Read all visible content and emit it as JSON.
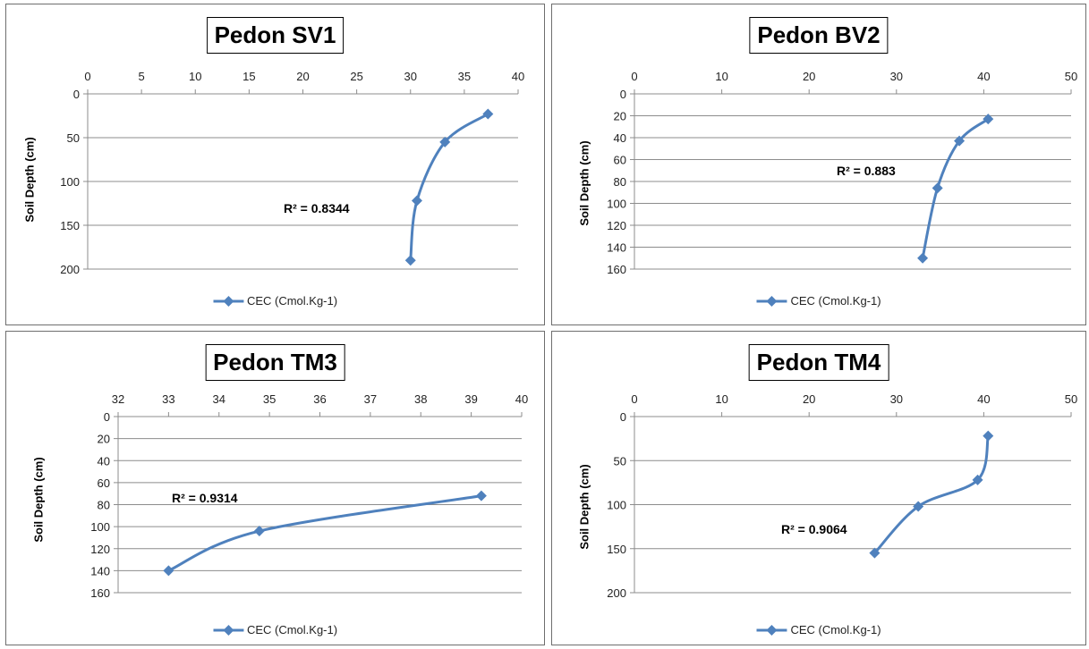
{
  "chart_data": [
    {
      "type": "line",
      "title": "Pedon SV1",
      "ylabel": "Soil Depth (cm)",
      "xlim": [
        0,
        40
      ],
      "xticks": [
        0,
        5,
        10,
        15,
        20,
        25,
        30,
        35,
        40
      ],
      "ylim": [
        0,
        200
      ],
      "yticks": [
        0,
        50,
        100,
        150,
        200
      ],
      "y_inverted": true,
      "x_axis_position": "top",
      "grid": "horizontal",
      "legend_position": "bottom",
      "annotation": "R² = 0.8344",
      "series": [
        {
          "name": "CEC (Cmol.Kg-1)",
          "color": "#4f81bd",
          "marker": "diamond",
          "smooth": true,
          "x": [
            37.2,
            33.2,
            30.6,
            30.0
          ],
          "y": [
            23,
            55,
            122,
            190
          ]
        }
      ]
    },
    {
      "type": "line",
      "title": "Pedon BV2",
      "ylabel": "Soil Depth (cm)",
      "xlim": [
        0,
        50
      ],
      "xticks": [
        0,
        10,
        20,
        30,
        40,
        50
      ],
      "ylim": [
        0,
        160
      ],
      "yticks": [
        0,
        20,
        40,
        60,
        80,
        100,
        120,
        140,
        160
      ],
      "y_inverted": true,
      "x_axis_position": "top",
      "grid": "horizontal",
      "legend_position": "bottom",
      "annotation": "R² = 0.883",
      "series": [
        {
          "name": "CEC (Cmol.Kg-1)",
          "color": "#4f81bd",
          "marker": "diamond",
          "smooth": true,
          "x": [
            40.5,
            37.2,
            34.7,
            33.0
          ],
          "y": [
            23,
            43,
            86,
            150
          ]
        }
      ]
    },
    {
      "type": "line",
      "title": "Pedon TM3",
      "ylabel": "Soil Depth (cm)",
      "xlim": [
        32,
        40
      ],
      "xticks": [
        32,
        33,
        34,
        35,
        36,
        37,
        38,
        39,
        40
      ],
      "ylim": [
        0,
        160
      ],
      "yticks": [
        0,
        20,
        40,
        60,
        80,
        100,
        120,
        140,
        160
      ],
      "y_inverted": true,
      "x_axis_position": "top",
      "grid": "horizontal",
      "legend_position": "bottom",
      "annotation": "R² = 0.9314",
      "series": [
        {
          "name": "CEC (Cmol.Kg-1)",
          "color": "#4f81bd",
          "marker": "diamond",
          "smooth": true,
          "x": [
            39.2,
            34.8,
            33.0
          ],
          "y": [
            72,
            104,
            140
          ]
        }
      ]
    },
    {
      "type": "line",
      "title": "Pedon TM4",
      "ylabel": "Soil Depth (cm)",
      "xlim": [
        0,
        50
      ],
      "xticks": [
        0,
        10,
        20,
        30,
        40,
        50
      ],
      "ylim": [
        0,
        200
      ],
      "yticks": [
        0,
        50,
        100,
        150,
        200
      ],
      "y_inverted": true,
      "x_axis_position": "top",
      "grid": "horizontal",
      "legend_position": "bottom",
      "annotation": "R² = 0.9064",
      "series": [
        {
          "name": "CEC (Cmol.Kg-1)",
          "color": "#4f81bd",
          "marker": "diamond",
          "smooth": true,
          "x": [
            40.5,
            39.3,
            32.5,
            27.5
          ],
          "y": [
            22,
            72,
            102,
            155
          ]
        }
      ]
    }
  ]
}
